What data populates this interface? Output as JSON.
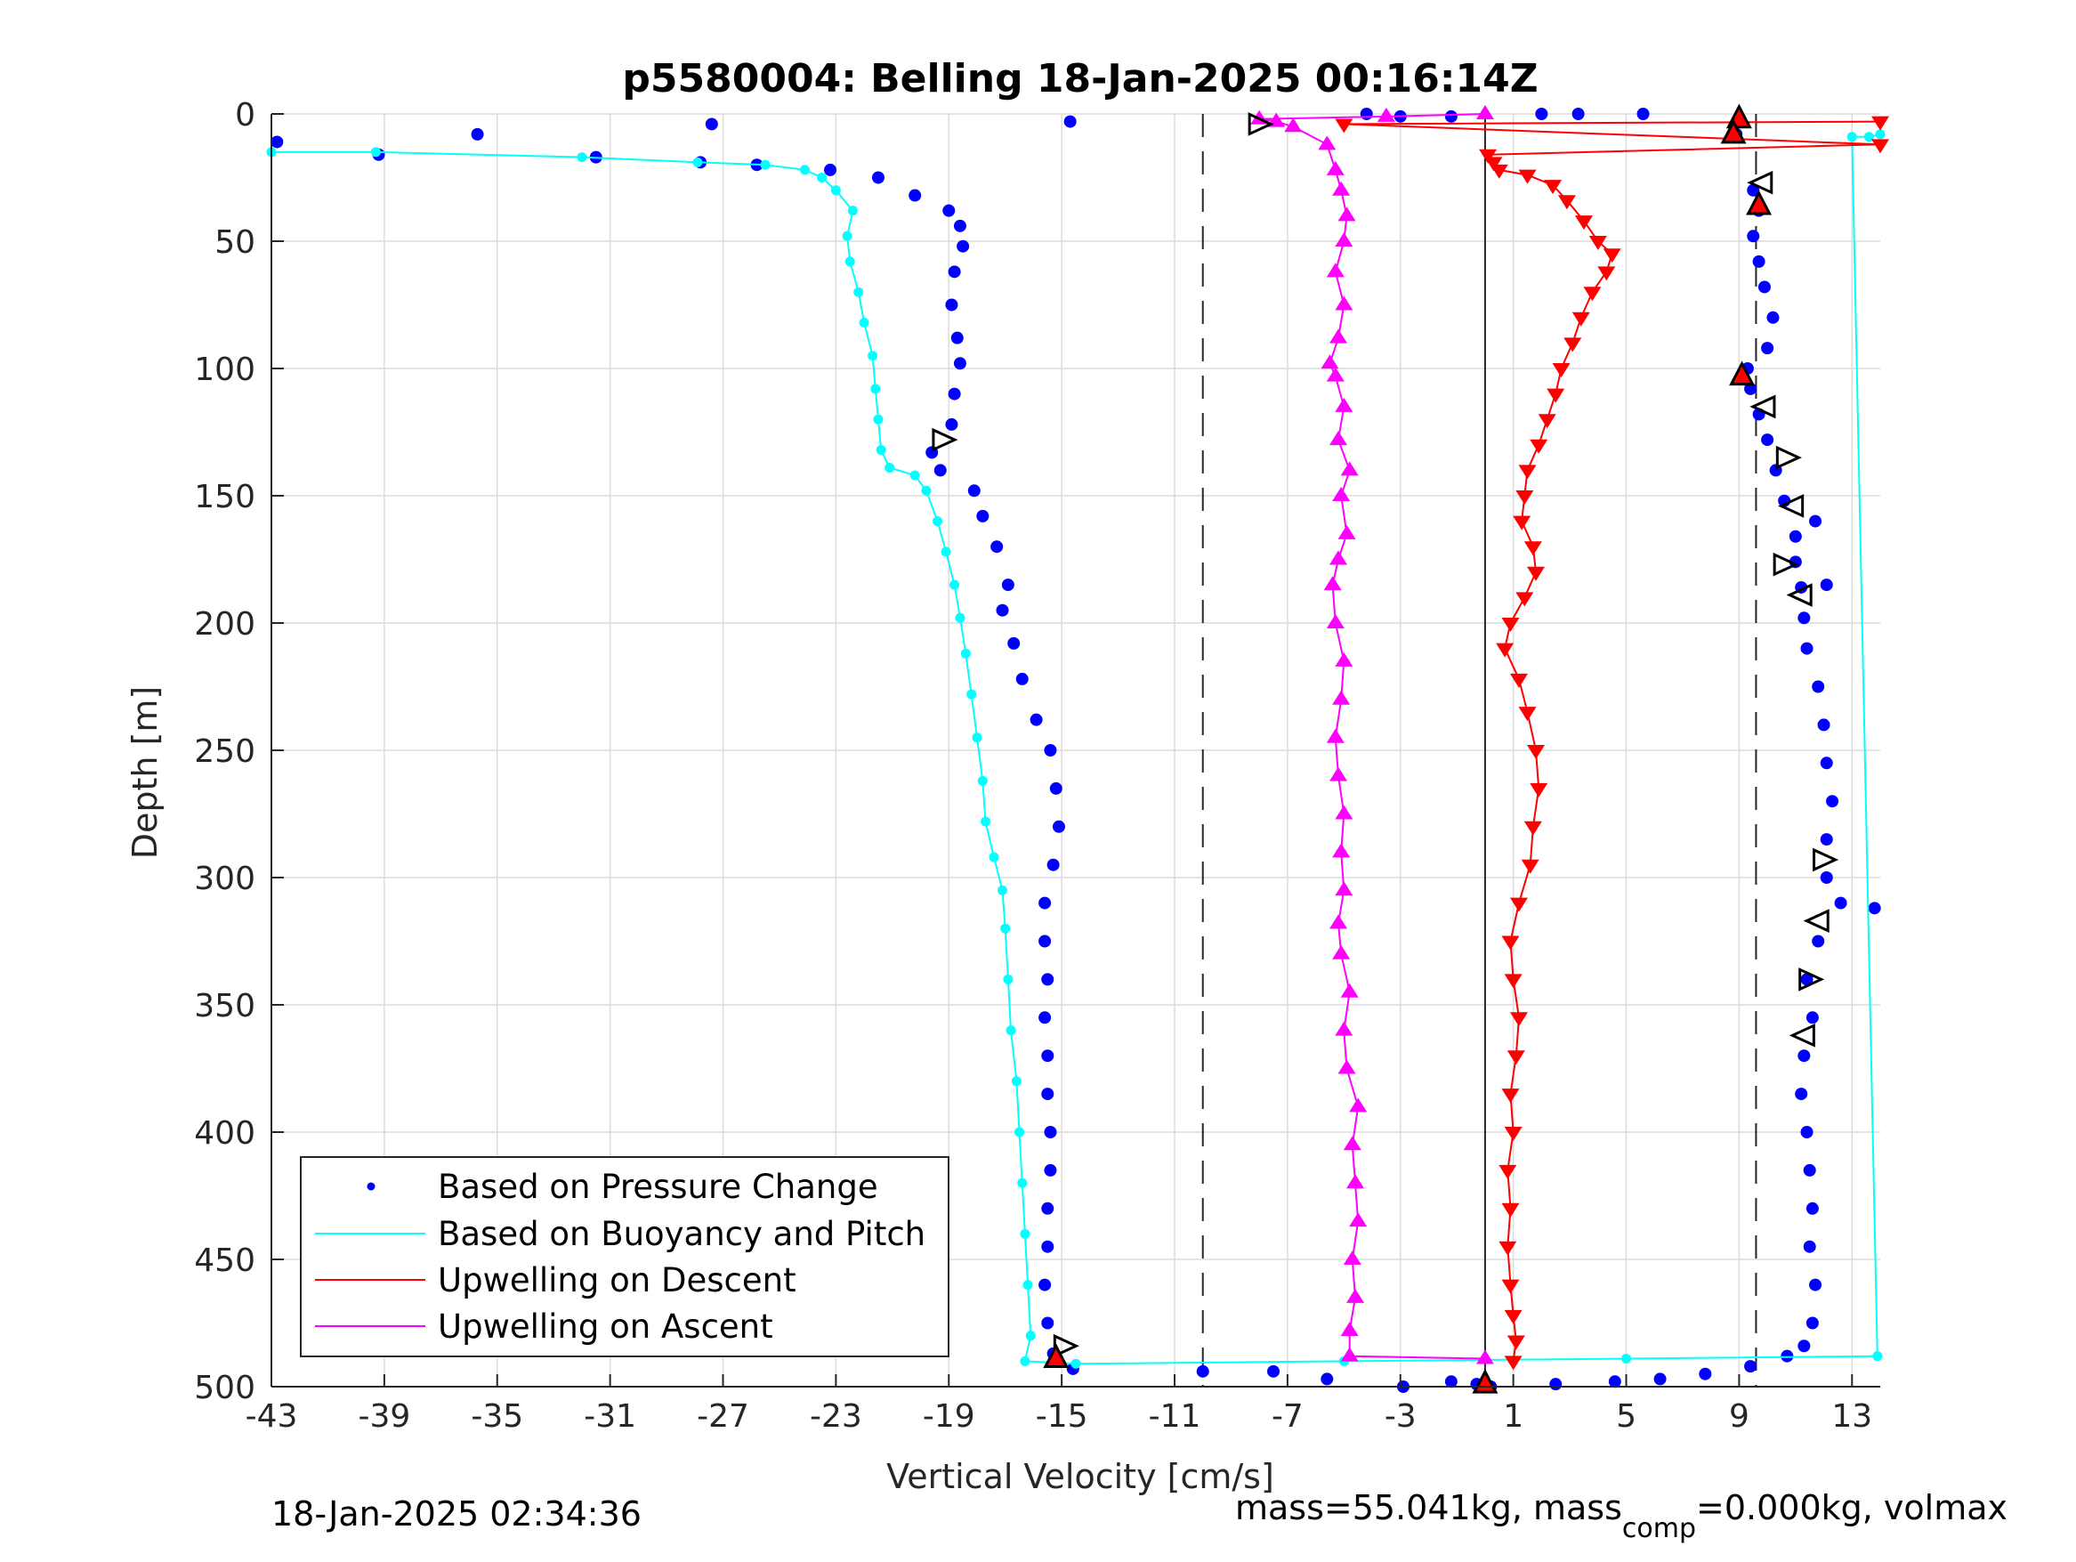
{
  "chart_data": {
    "type": "scatter",
    "title": "p5580004: Belling 18-Jan-2025 00:16:14Z",
    "xlabel": "Vertical Velocity [cm/s]",
    "ylabel": "Depth [m]",
    "xlim": [
      -43,
      14
    ],
    "ylim": [
      0,
      500
    ],
    "y_reversed": true,
    "grid": true,
    "legend_position": "bottom-left",
    "x_ticks": [
      "-43",
      "-39",
      "-35",
      "-31",
      "-27",
      "-23",
      "-19",
      "-15",
      "-11",
      "-7",
      "-3",
      "1",
      "5",
      "9",
      "13"
    ],
    "y_ticks": [
      "0",
      "50",
      "100",
      "150",
      "200",
      "250",
      "300",
      "350",
      "400",
      "450",
      "500"
    ],
    "reference_lines": {
      "solid_x": 0.0,
      "dashed_x": [
        -10.0,
        9.6
      ]
    },
    "series": [
      {
        "name": "Based on Pressure Change",
        "color": "#0000ff",
        "marker": "dot",
        "points": [
          [
            -42.8,
            11
          ],
          [
            -35.7,
            8
          ],
          [
            -27.4,
            4
          ],
          [
            -14.7,
            3
          ],
          [
            -39.2,
            16
          ],
          [
            -31.5,
            17
          ],
          [
            -27.8,
            19
          ],
          [
            -25.8,
            20
          ],
          [
            -23.2,
            22
          ],
          [
            -21.5,
            25
          ],
          [
            -20.2,
            32
          ],
          [
            -19.0,
            38
          ],
          [
            -18.6,
            44
          ],
          [
            -18.5,
            52
          ],
          [
            -18.8,
            62
          ],
          [
            -18.9,
            75
          ],
          [
            -18.7,
            88
          ],
          [
            -18.6,
            98
          ],
          [
            -18.8,
            110
          ],
          [
            -18.9,
            122
          ],
          [
            -19.6,
            133
          ],
          [
            -19.3,
            140
          ],
          [
            -18.1,
            148
          ],
          [
            -17.8,
            158
          ],
          [
            -17.3,
            170
          ],
          [
            -16.9,
            185
          ],
          [
            -17.1,
            195
          ],
          [
            -16.7,
            208
          ],
          [
            -16.4,
            222
          ],
          [
            -15.9,
            238
          ],
          [
            -15.4,
            250
          ],
          [
            -15.2,
            265
          ],
          [
            -15.1,
            280
          ],
          [
            -15.3,
            295
          ],
          [
            -15.6,
            310
          ],
          [
            -15.6,
            325
          ],
          [
            -15.5,
            340
          ],
          [
            -15.6,
            355
          ],
          [
            -15.5,
            370
          ],
          [
            -15.5,
            385
          ],
          [
            -15.4,
            400
          ],
          [
            -15.4,
            415
          ],
          [
            -15.5,
            430
          ],
          [
            -15.5,
            445
          ],
          [
            -15.6,
            460
          ],
          [
            -15.5,
            475
          ],
          [
            -15.3,
            487
          ],
          [
            -14.6,
            493
          ],
          [
            -10.0,
            494
          ],
          [
            -7.5,
            494
          ],
          [
            -5.6,
            497
          ],
          [
            -2.9,
            500
          ],
          [
            -1.2,
            498
          ],
          [
            -0.3,
            499
          ],
          [
            0.2,
            500
          ],
          [
            2.5,
            499
          ],
          [
            4.6,
            498
          ],
          [
            6.2,
            497
          ],
          [
            7.8,
            495
          ],
          [
            9.4,
            492
          ],
          [
            10.7,
            488
          ],
          [
            11.3,
            484
          ],
          [
            11.6,
            475
          ],
          [
            11.7,
            460
          ],
          [
            11.5,
            445
          ],
          [
            11.6,
            430
          ],
          [
            11.5,
            415
          ],
          [
            11.4,
            400
          ],
          [
            11.2,
            385
          ],
          [
            11.3,
            370
          ],
          [
            11.6,
            355
          ],
          [
            11.4,
            340
          ],
          [
            11.8,
            325
          ],
          [
            12.6,
            310
          ],
          [
            13.8,
            312
          ],
          [
            12.1,
            300
          ],
          [
            12.1,
            285
          ],
          [
            12.3,
            270
          ],
          [
            12.1,
            255
          ],
          [
            12.0,
            240
          ],
          [
            11.8,
            225
          ],
          [
            11.4,
            210
          ],
          [
            11.3,
            198
          ],
          [
            11.2,
            186
          ],
          [
            12.1,
            185
          ],
          [
            11.0,
            176
          ],
          [
            11.0,
            166
          ],
          [
            11.7,
            160
          ],
          [
            10.6,
            152
          ],
          [
            10.3,
            140
          ],
          [
            10.0,
            128
          ],
          [
            9.7,
            118
          ],
          [
            9.4,
            108
          ],
          [
            9.3,
            100
          ],
          [
            10.0,
            92
          ],
          [
            10.2,
            80
          ],
          [
            9.9,
            68
          ],
          [
            9.7,
            58
          ],
          [
            9.5,
            48
          ],
          [
            9.7,
            38
          ],
          [
            9.5,
            30
          ],
          [
            8.9,
            8
          ],
          [
            9.0,
            2
          ],
          [
            5.6,
            0
          ],
          [
            -1.2,
            1
          ],
          [
            -3.0,
            1
          ],
          [
            -4.2,
            0
          ],
          [
            2.0,
            0
          ],
          [
            3.3,
            0
          ]
        ]
      },
      {
        "name": "Based on Buoyancy and Pitch",
        "color": "#00ffff",
        "marker": "line-dot",
        "points": [
          [
            -43.0,
            15
          ],
          [
            -39.3,
            15
          ],
          [
            -32.0,
            17
          ],
          [
            -27.9,
            19
          ],
          [
            -25.5,
            20
          ],
          [
            -24.1,
            22
          ],
          [
            -23.5,
            25
          ],
          [
            -23.0,
            30
          ],
          [
            -22.4,
            38
          ],
          [
            -22.6,
            48
          ],
          [
            -22.5,
            58
          ],
          [
            -22.2,
            70
          ],
          [
            -22.0,
            82
          ],
          [
            -21.7,
            95
          ],
          [
            -21.6,
            108
          ],
          [
            -21.5,
            120
          ],
          [
            -21.4,
            132
          ],
          [
            -21.1,
            139
          ],
          [
            -20.2,
            142
          ],
          [
            -19.8,
            148
          ],
          [
            -19.4,
            160
          ],
          [
            -19.1,
            172
          ],
          [
            -18.8,
            185
          ],
          [
            -18.6,
            198
          ],
          [
            -18.4,
            212
          ],
          [
            -18.2,
            228
          ],
          [
            -18.0,
            245
          ],
          [
            -17.8,
            262
          ],
          [
            -17.7,
            278
          ],
          [
            -17.4,
            292
          ],
          [
            -17.1,
            305
          ],
          [
            -17.0,
            320
          ],
          [
            -16.9,
            340
          ],
          [
            -16.8,
            360
          ],
          [
            -16.6,
            380
          ],
          [
            -16.5,
            400
          ],
          [
            -16.4,
            420
          ],
          [
            -16.3,
            440
          ],
          [
            -16.2,
            460
          ],
          [
            -16.1,
            480
          ],
          [
            -16.3,
            490
          ],
          [
            -14.5,
            491
          ],
          [
            -5.0,
            490
          ],
          [
            5.0,
            489
          ],
          [
            13.9,
            488
          ],
          [
            13.0,
            9
          ],
          [
            13.6,
            9
          ],
          [
            14.0,
            8
          ]
        ]
      },
      {
        "name": "Upwelling on Descent",
        "color": "#ff0000",
        "marker": "triangle-down",
        "points": [
          [
            14.0,
            3
          ],
          [
            -5.0,
            4
          ],
          [
            14.0,
            12
          ],
          [
            0.1,
            16
          ],
          [
            0.3,
            19
          ],
          [
            0.5,
            22
          ],
          [
            1.5,
            24
          ],
          [
            2.4,
            28
          ],
          [
            2.9,
            34
          ],
          [
            3.5,
            42
          ],
          [
            4.0,
            50
          ],
          [
            4.5,
            55
          ],
          [
            4.3,
            62
          ],
          [
            3.8,
            70
          ],
          [
            3.4,
            80
          ],
          [
            3.1,
            90
          ],
          [
            2.7,
            100
          ],
          [
            2.5,
            110
          ],
          [
            2.2,
            120
          ],
          [
            1.9,
            130
          ],
          [
            1.5,
            140
          ],
          [
            1.4,
            150
          ],
          [
            1.3,
            160
          ],
          [
            1.7,
            170
          ],
          [
            1.8,
            180
          ],
          [
            1.4,
            190
          ],
          [
            0.9,
            200
          ],
          [
            0.7,
            210
          ],
          [
            1.2,
            222
          ],
          [
            1.5,
            235
          ],
          [
            1.8,
            250
          ],
          [
            1.9,
            265
          ],
          [
            1.7,
            280
          ],
          [
            1.6,
            295
          ],
          [
            1.2,
            310
          ],
          [
            0.9,
            325
          ],
          [
            1.0,
            340
          ],
          [
            1.2,
            355
          ],
          [
            1.1,
            370
          ],
          [
            0.9,
            385
          ],
          [
            1.0,
            400
          ],
          [
            0.8,
            415
          ],
          [
            0.9,
            430
          ],
          [
            0.8,
            445
          ],
          [
            0.9,
            460
          ],
          [
            1.0,
            472
          ],
          [
            1.1,
            482
          ],
          [
            1.0,
            490
          ]
        ]
      },
      {
        "name": "Upwelling on Ascent",
        "color": "#ff00ff",
        "marker": "triangle-up",
        "points": [
          [
            0.0,
            489
          ],
          [
            -4.8,
            488
          ],
          [
            -4.8,
            478
          ],
          [
            -4.6,
            465
          ],
          [
            -4.7,
            450
          ],
          [
            -4.5,
            435
          ],
          [
            -4.6,
            420
          ],
          [
            -4.7,
            405
          ],
          [
            -4.5,
            390
          ],
          [
            -4.9,
            375
          ],
          [
            -5.0,
            360
          ],
          [
            -4.8,
            345
          ],
          [
            -5.1,
            330
          ],
          [
            -5.2,
            318
          ],
          [
            -5.0,
            305
          ],
          [
            -5.1,
            290
          ],
          [
            -5.0,
            275
          ],
          [
            -5.2,
            260
          ],
          [
            -5.3,
            245
          ],
          [
            -5.1,
            230
          ],
          [
            -5.0,
            215
          ],
          [
            -5.3,
            200
          ],
          [
            -5.4,
            185
          ],
          [
            -5.2,
            175
          ],
          [
            -4.9,
            165
          ],
          [
            -5.1,
            150
          ],
          [
            -4.8,
            140
          ],
          [
            -5.2,
            128
          ],
          [
            -5.0,
            115
          ],
          [
            -5.3,
            103
          ],
          [
            -5.5,
            98
          ],
          [
            -5.2,
            88
          ],
          [
            -5.0,
            75
          ],
          [
            -5.3,
            62
          ],
          [
            -5.0,
            50
          ],
          [
            -4.9,
            40
          ],
          [
            -5.1,
            30
          ],
          [
            -5.3,
            22
          ],
          [
            -5.6,
            12
          ],
          [
            -6.8,
            5
          ],
          [
            -7.4,
            3
          ],
          [
            -8.0,
            2
          ],
          [
            -3.5,
            1
          ],
          [
            0.0,
            0
          ]
        ]
      }
    ],
    "open_triangle_markers": [
      [
        -8.0,
        4
      ],
      [
        9.8,
        27
      ],
      [
        -19.2,
        128
      ],
      [
        9.9,
        115
      ],
      [
        10.7,
        135
      ],
      [
        10.9,
        154
      ],
      [
        10.6,
        177
      ],
      [
        11.2,
        189
      ],
      [
        12.0,
        293
      ],
      [
        11.8,
        317
      ],
      [
        11.5,
        340
      ],
      [
        11.3,
        362
      ],
      [
        -14.9,
        484
      ]
    ],
    "red_filled_markers": [
      [
        9.0,
        2
      ],
      [
        8.8,
        8
      ],
      [
        9.7,
        36
      ],
      [
        9.1,
        103
      ],
      [
        -15.2,
        489
      ],
      [
        0.0,
        499
      ]
    ]
  },
  "footer": {
    "timestamp": "18-Jan-2025 02:34:36",
    "mass_prefix": "mass=55.041kg, mass",
    "mass_subscript": "comp",
    "mass_suffix": "=0.000kg, volmax"
  }
}
